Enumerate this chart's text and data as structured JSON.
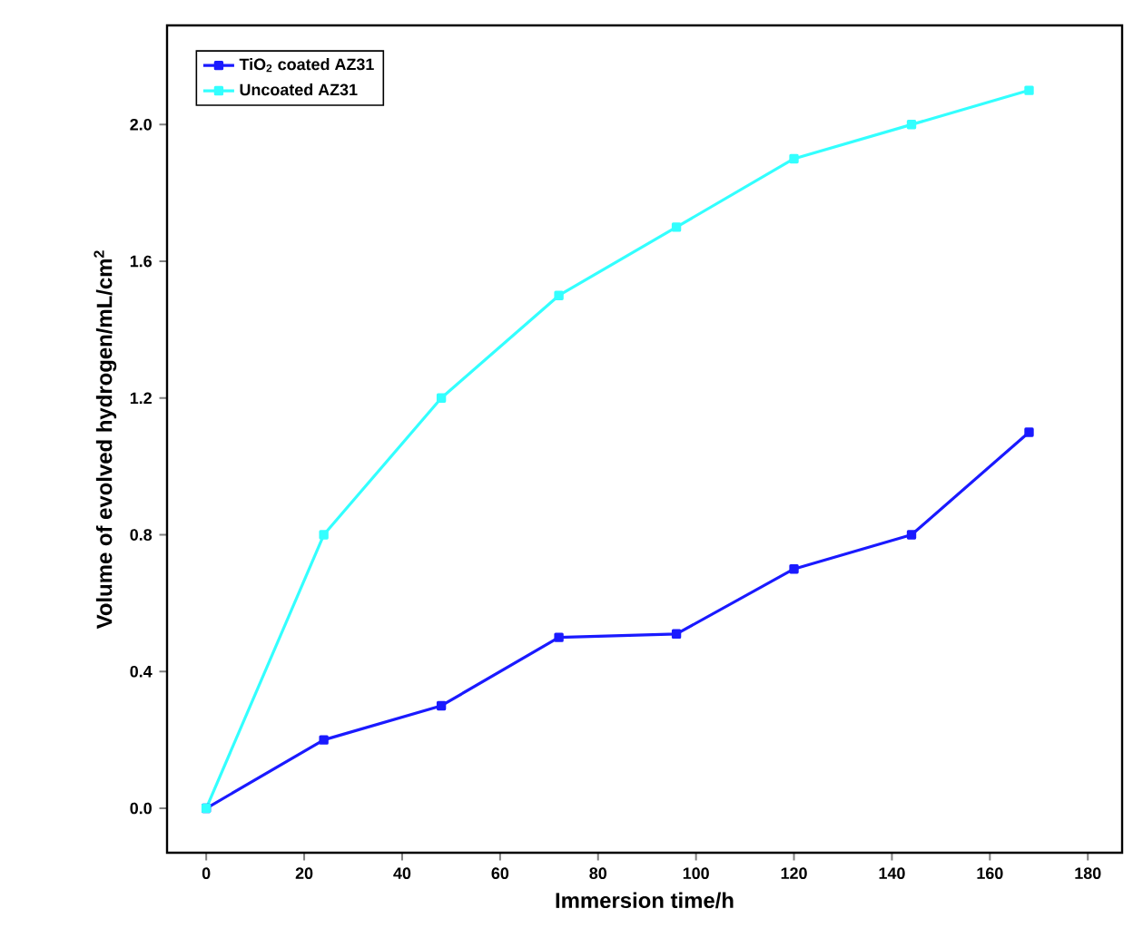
{
  "chart_data": {
    "type": "line",
    "xlabel": "Immersion time/h",
    "ylabel": "Volume of evolved hydrogen/mL/cm$^{2}$",
    "x": [
      0,
      24,
      48,
      72,
      96,
      120,
      144,
      168
    ],
    "series": [
      {
        "name": "TiO$_{2}$ coated AZ31",
        "color": "#1a1aff",
        "values": [
          0,
          0.2,
          0.3,
          0.5,
          0.51,
          0.7,
          0.8,
          1.1
        ]
      },
      {
        "name": "Uncoated AZ31",
        "color": "#33ffff",
        "values": [
          0,
          0.8,
          1.2,
          1.5,
          1.7,
          1.9,
          2.0,
          2.1
        ]
      }
    ],
    "xlim": [
      -8,
      187
    ],
    "xticks": [
      0,
      20,
      40,
      60,
      80,
      100,
      120,
      140,
      160,
      180
    ],
    "ylim": [
      -0.13,
      2.29
    ],
    "yticks": [
      {
        "value": 0,
        "label": "0.0"
      },
      {
        "value": 0.4,
        "label": "0.4"
      },
      {
        "value": 0.8,
        "label": "0.8"
      },
      {
        "value": 1.2,
        "label": "1.2"
      },
      {
        "value": 1.6,
        "label": "1.6"
      },
      {
        "value": 2.0,
        "label": "2.0"
      }
    ],
    "legend": "top left",
    "marker": "square",
    "line_style": "solid",
    "grid": false
  }
}
